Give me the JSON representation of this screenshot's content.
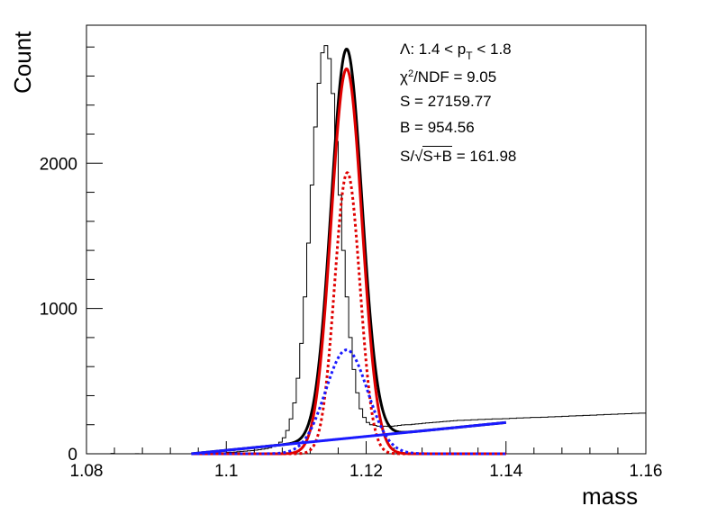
{
  "colors": {
    "data": "#000000",
    "total_fit": "#000000",
    "signal_fit": "#e00000",
    "signal_component": "#e00000",
    "background_component": "#1a1aff",
    "background_fit": "#1a1aff"
  },
  "stats": {
    "line1_prefix": "Λ: 1.4 < p",
    "line1_sub": "T",
    "line1_suffix": " < 1.8",
    "chi2_prefix": "χ",
    "chi2_sup": "2",
    "chi2_rest": "/NDF = 9.05",
    "s_line": "S = 27159.77",
    "b_line": "B = 954.56",
    "sig_prefix": "S/",
    "sig_root": "S+B",
    "sig_suffix": " = 161.98"
  },
  "chart_data": {
    "type": "line",
    "title": "",
    "xlabel": "mass",
    "ylabel": "Count",
    "xlim": [
      1.08,
      1.16
    ],
    "ylim": [
      0,
      2950
    ],
    "x_ticks": [
      1.08,
      1.1,
      1.12,
      1.14,
      1.16
    ],
    "x_tick_labels": [
      "1.08",
      "1.1",
      "1.12",
      "1.14",
      "1.16"
    ],
    "y_ticks": [
      0,
      1000,
      2000
    ],
    "y_tick_labels": [
      "0",
      "1000",
      "2000"
    ],
    "grid": false,
    "histogram": {
      "name": "data",
      "bin_edges_start": 1.08,
      "bin_width": 0.0005,
      "counts": [
        0,
        0,
        0,
        0,
        0,
        0,
        0,
        2,
        0,
        0,
        0,
        0,
        0,
        0,
        1,
        0,
        0,
        0,
        0,
        0,
        0,
        0,
        0,
        0,
        0,
        0,
        0,
        0,
        0,
        0,
        0,
        0,
        0,
        1,
        2,
        3,
        3,
        4,
        6,
        7,
        9,
        10,
        12,
        14,
        16,
        18,
        20,
        22,
        25,
        28,
        32,
        36,
        42,
        50,
        62,
        80,
        110,
        160,
        240,
        350,
        520,
        760,
        1080,
        1450,
        1850,
        2250,
        2550,
        2760,
        2810,
        2720,
        2480,
        2150,
        1780,
        1400,
        1080,
        800,
        580,
        420,
        310,
        250,
        215,
        200,
        195,
        190,
        188,
        190,
        188,
        190,
        192,
        195,
        198,
        200,
        200,
        203,
        205,
        207,
        210,
        212,
        214,
        216,
        218,
        220,
        222,
        224,
        226,
        228,
        230,
        230,
        232,
        232,
        234,
        234,
        236,
        236,
        238,
        238,
        240,
        240,
        240,
        242,
        242,
        244,
        244,
        246,
        246,
        248,
        248,
        250,
        250,
        250,
        252,
        252,
        254,
        254,
        256,
        256,
        258,
        258,
        260,
        260,
        262,
        262,
        264,
        264,
        266,
        266,
        268,
        268,
        270,
        270,
        272,
        272,
        274,
        274,
        276,
        276,
        278,
        278,
        280,
        280
      ]
    },
    "series": [
      {
        "name": "total",
        "style": "solid",
        "x_range": [
          1.095,
          1.14
        ],
        "peak": {
          "mu": 1.1172,
          "amp": 2680,
          "sigma": 0.0022
        },
        "bkg": {
          "a": 0,
          "b": 4778
        }
      },
      {
        "name": "signal",
        "style": "solid",
        "x_range": [
          1.095,
          1.14
        ],
        "peak": {
          "mu": 1.1172,
          "amp": 2650,
          "sigma": 0.0022
        }
      },
      {
        "name": "signal_narrow",
        "style": "dotted",
        "x_range": [
          1.095,
          1.14
        ],
        "peak": {
          "mu": 1.1173,
          "amp": 1935,
          "sigma": 0.0018
        }
      },
      {
        "name": "signal_wide",
        "style": "dotted",
        "x_range": [
          1.095,
          1.14
        ],
        "peak": {
          "mu": 1.1172,
          "amp": 715,
          "sigma": 0.003
        }
      },
      {
        "name": "background",
        "style": "solid",
        "x_range": [
          1.095,
          1.14
        ],
        "line": {
          "x0": 1.095,
          "y0": 0,
          "x1": 1.14,
          "y1": 215
        }
      }
    ]
  }
}
